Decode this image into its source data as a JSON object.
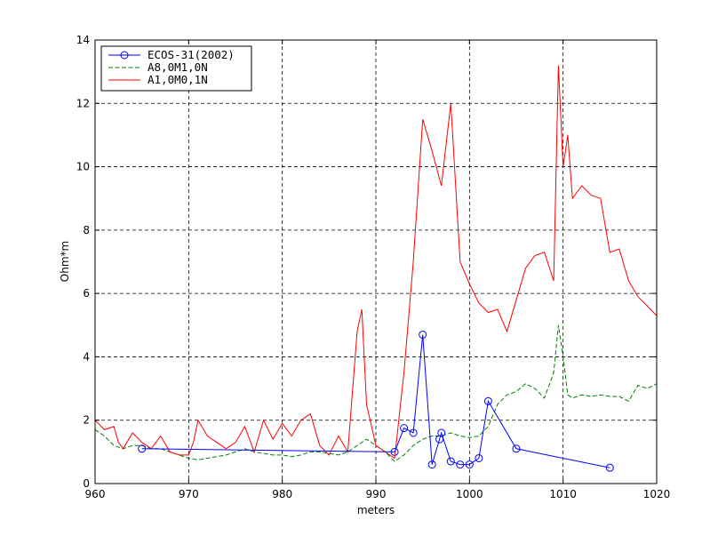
{
  "chart_data": {
    "type": "line",
    "title": "",
    "xlabel": "meters",
    "ylabel": "Ohm*m",
    "xlim": [
      960,
      1020
    ],
    "ylim": [
      0,
      14
    ],
    "xticks": [
      "960",
      "970",
      "980",
      "990",
      "1000",
      "1010",
      "1020"
    ],
    "yticks": [
      "0",
      "2",
      "4",
      "6",
      "8",
      "10",
      "12",
      "14"
    ],
    "grid": true,
    "legend_position": "top-left",
    "series": [
      {
        "name": "ECOS-31(2002)",
        "color": "#0000ff",
        "style": "solid",
        "marker": "circle",
        "x": [
          965,
          992,
          993,
          994,
          995,
          996,
          996.8,
          997,
          998,
          999,
          1000,
          1001,
          1002,
          1005,
          1015
        ],
        "y": [
          1.1,
          1.0,
          1.75,
          1.6,
          4.7,
          0.6,
          1.4,
          1.6,
          0.7,
          0.6,
          0.6,
          0.8,
          2.6,
          1.1,
          0.5
        ]
      },
      {
        "name": "A8,0M1,0N",
        "color": "#008000",
        "style": "dashed",
        "marker": "none",
        "x": [
          960,
          961,
          962,
          963,
          964,
          965,
          966,
          967,
          968,
          969,
          970,
          971,
          972,
          973,
          974,
          975,
          976,
          977,
          978,
          979,
          980,
          981,
          982,
          983,
          984,
          985,
          986,
          987,
          988,
          989,
          990,
          991,
          992,
          993,
          994,
          995,
          996,
          997,
          998,
          999,
          1000,
          1001,
          1002,
          1003,
          1004,
          1005,
          1006,
          1007,
          1008,
          1009,
          1009.5,
          1010,
          1010.5,
          1011,
          1012,
          1013,
          1014,
          1015,
          1016,
          1017,
          1018,
          1019,
          1020
        ],
        "y": [
          1.7,
          1.5,
          1.2,
          1.1,
          1.2,
          1.2,
          1.1,
          1.1,
          1.0,
          0.9,
          0.8,
          0.75,
          0.8,
          0.85,
          0.9,
          1.0,
          1.1,
          1.0,
          0.95,
          0.9,
          0.9,
          0.85,
          0.9,
          1.0,
          1.0,
          0.95,
          0.9,
          1.0,
          1.2,
          1.4,
          1.2,
          1.0,
          0.7,
          0.9,
          1.2,
          1.4,
          1.5,
          1.5,
          1.6,
          1.5,
          1.45,
          1.5,
          1.8,
          2.5,
          2.8,
          2.9,
          3.15,
          3.0,
          2.7,
          3.5,
          5.0,
          4.0,
          2.8,
          2.7,
          2.8,
          2.75,
          2.8,
          2.75,
          2.75,
          2.6,
          3.1,
          3.0,
          3.15
        ]
      },
      {
        "name": "A1,0M0,1N",
        "color": "#ff0000",
        "style": "solid",
        "marker": "none",
        "x": [
          960,
          961,
          962,
          962.5,
          963,
          964,
          965,
          966,
          967,
          968,
          969,
          970,
          970.5,
          971,
          972,
          973,
          974,
          975,
          976,
          977,
          978,
          979,
          980,
          981,
          982,
          983,
          984,
          985,
          986,
          987,
          988,
          988.5,
          989,
          990,
          991,
          992,
          993,
          994,
          995,
          996,
          997,
          998,
          999,
          1000,
          1001,
          1002,
          1003,
          1004,
          1005,
          1006,
          1007,
          1008,
          1009,
          1009.5,
          1010,
          1010.5,
          1011,
          1012,
          1013,
          1014,
          1015,
          1016,
          1017,
          1018,
          1019,
          1020
        ],
        "y": [
          2.0,
          1.7,
          1.8,
          1.3,
          1.1,
          1.6,
          1.3,
          1.1,
          1.5,
          1.0,
          0.9,
          0.9,
          1.3,
          2.0,
          1.5,
          1.3,
          1.1,
          1.3,
          1.8,
          1.0,
          2.0,
          1.4,
          1.9,
          1.5,
          2.0,
          2.2,
          1.2,
          0.9,
          1.5,
          1.0,
          4.8,
          5.5,
          2.5,
          1.2,
          1.0,
          0.8,
          3.5,
          7.0,
          11.5,
          10.5,
          9.4,
          12.0,
          7.0,
          6.3,
          5.7,
          5.4,
          5.5,
          4.8,
          5.8,
          6.8,
          7.2,
          7.3,
          6.4,
          13.2,
          10.0,
          11.0,
          9.0,
          9.4,
          9.1,
          9.0,
          7.3,
          7.4,
          6.4,
          5.9,
          5.6,
          5.3
        ]
      }
    ]
  }
}
